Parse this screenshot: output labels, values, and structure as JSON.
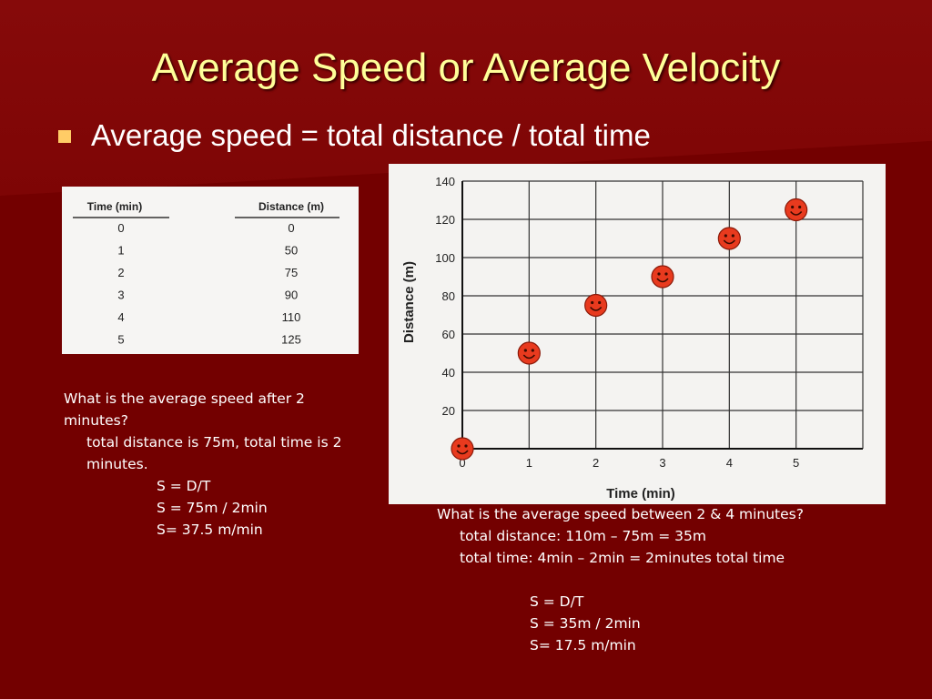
{
  "slide": {
    "title": "Average Speed or Average Velocity",
    "bullet": "Average speed = total distance / total time"
  },
  "table": {
    "headers": [
      "Time (min)",
      "Distance (m)"
    ],
    "rows": [
      [
        "0",
        "0"
      ],
      [
        "1",
        "50"
      ],
      [
        "2",
        "75"
      ],
      [
        "3",
        "90"
      ],
      [
        "4",
        "110"
      ],
      [
        "5",
        "125"
      ]
    ]
  },
  "chart_data": {
    "type": "scatter",
    "xlabel": "Time (min)",
    "ylabel": "Distance (m)",
    "xlim": [
      0,
      6
    ],
    "ylim": [
      0,
      140
    ],
    "xticks": [
      0,
      1,
      2,
      3,
      4,
      5
    ],
    "yticks": [
      20,
      40,
      60,
      80,
      100,
      120,
      140
    ],
    "grid": true,
    "marker": "smiley",
    "marker_color": "#e83a1e",
    "points": [
      {
        "x": 0,
        "y": 0
      },
      {
        "x": 1,
        "y": 50
      },
      {
        "x": 2,
        "y": 75
      },
      {
        "x": 3,
        "y": 90
      },
      {
        "x": 4,
        "y": 110
      },
      {
        "x": 5,
        "y": 125
      }
    ]
  },
  "left_explanation": {
    "question": "What is the average speed after 2 minutes?",
    "line1": "total distance is 75m, total time is 2 minutes.",
    "f1": "S = D/T",
    "f2": "S = 75m / 2min",
    "f3": "S= 37.5  m/min"
  },
  "right_explanation": {
    "question": "What is the average speed between 2 & 4 minutes?",
    "line1": "total distance:  110m – 75m = 35m",
    "line2": "total time: 4min – 2min = 2minutes total time",
    "f1": "S = D/T",
    "f2": "S = 35m / 2min",
    "f3": "S= 17.5  m/min"
  },
  "colors": {
    "background": "#7a0000",
    "title": "#ffff99",
    "bullet": "#ffcc66",
    "text": "#ffffff"
  }
}
